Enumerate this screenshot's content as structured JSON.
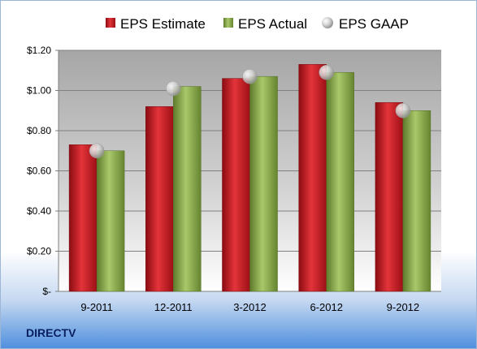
{
  "chart_data": {
    "type": "bar",
    "categories": [
      "9-2011",
      "12-2011",
      "3-2012",
      "6-2012",
      "9-2012"
    ],
    "series": [
      {
        "name": "EPS Estimate",
        "kind": "bar",
        "color": "#c8141c",
        "values": [
          0.73,
          0.92,
          1.06,
          1.13,
          0.94
        ]
      },
      {
        "name": "EPS Actual",
        "kind": "bar",
        "color": "#8aac48",
        "values": [
          0.7,
          1.02,
          1.07,
          1.09,
          0.9
        ]
      },
      {
        "name": "EPS GAAP",
        "kind": "marker",
        "color": "#c0c0c0",
        "values": [
          0.7,
          1.01,
          1.07,
          1.09,
          0.9
        ]
      }
    ],
    "yticks": [
      {
        "value": 0,
        "label": "$-"
      },
      {
        "value": 0.2,
        "label": "$0.20"
      },
      {
        "value": 0.4,
        "label": "$0.40"
      },
      {
        "value": 0.6,
        "label": "$0.60"
      },
      {
        "value": 0.8,
        "label": "$0.80"
      },
      {
        "value": 1.0,
        "label": "$1.00"
      },
      {
        "value": 1.2,
        "label": "$1.20"
      }
    ],
    "ylim": [
      0,
      1.2
    ],
    "grid": true,
    "legend": "top"
  },
  "footer": {
    "company": "DIRECTV"
  }
}
